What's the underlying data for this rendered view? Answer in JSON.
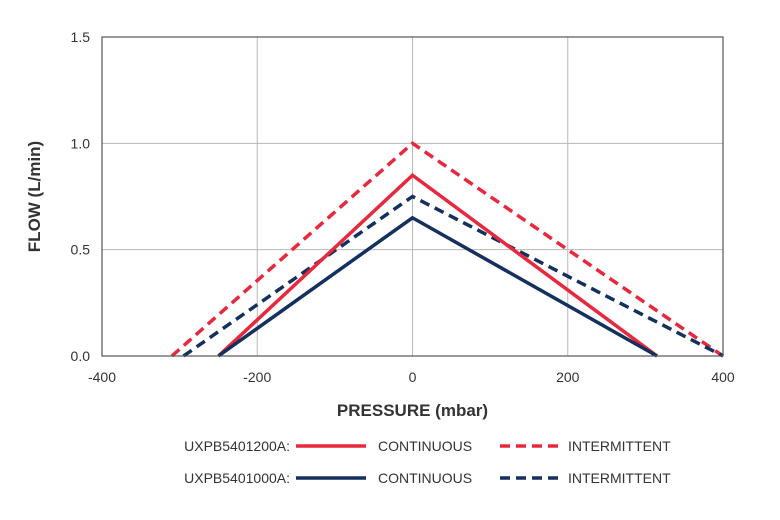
{
  "chart_data": {
    "type": "line",
    "xlabel": "PRESSURE (mbar)",
    "ylabel": "FLOW (L/min)",
    "xlim": [
      -400,
      400
    ],
    "ylim": [
      0,
      1.5
    ],
    "x_ticks": [
      "-400",
      "-200",
      "0",
      "200",
      "400"
    ],
    "y_ticks": [
      "0.0",
      "0.5",
      "1.0",
      "1.5"
    ],
    "grid": true,
    "legend_position": "bottom",
    "series": [
      {
        "model": "UXPB5401200A",
        "mode": "CONTINUOUS",
        "color": "#e8283c",
        "dash": "solid",
        "x": [
          -250,
          0,
          315
        ],
        "y": [
          0,
          0.85,
          0
        ]
      },
      {
        "model": "UXPB5401200A",
        "mode": "INTERMITTENT",
        "color": "#e8283c",
        "dash": "dashed",
        "x": [
          -310,
          0,
          400
        ],
        "y": [
          0,
          1.0,
          0
        ]
      },
      {
        "model": "UXPB5401000A",
        "mode": "CONTINUOUS",
        "color": "#14305e",
        "dash": "solid",
        "x": [
          -250,
          0,
          315
        ],
        "y": [
          0,
          0.65,
          0
        ]
      },
      {
        "model": "UXPB5401000A",
        "mode": "INTERMITTENT",
        "color": "#14305e",
        "dash": "dashed",
        "x": [
          -295,
          0,
          400
        ],
        "y": [
          0,
          0.75,
          0
        ]
      }
    ]
  },
  "legend": {
    "rows": [
      {
        "model_label": "UXPB5401200A:",
        "color": "#e8283c",
        "continuous_label": "CONTINUOUS",
        "intermittent_label": "INTERMITTENT"
      },
      {
        "model_label": "UXPB5401000A:",
        "color": "#14305e",
        "continuous_label": "CONTINUOUS",
        "intermittent_label": "INTERMITTENT"
      }
    ]
  }
}
